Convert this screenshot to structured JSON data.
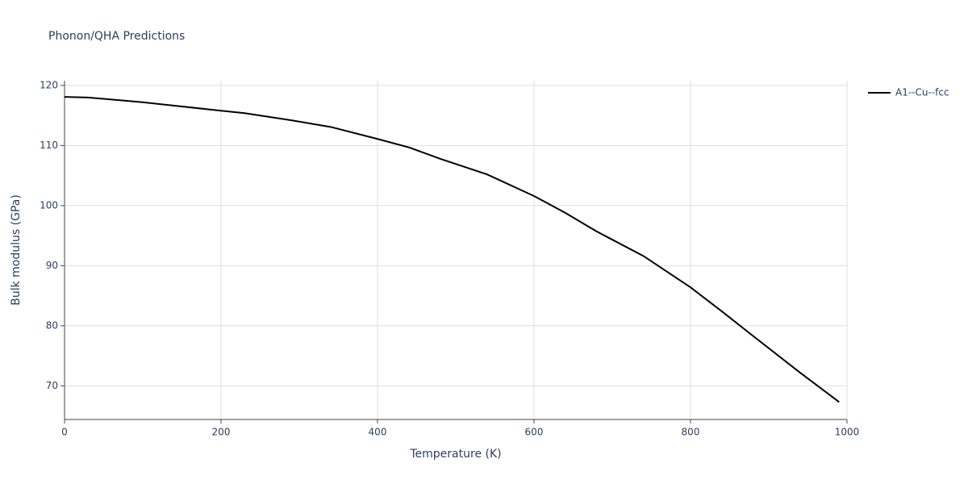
{
  "chart_data": {
    "type": "line",
    "title": "Phonon/QHA Predictions",
    "x_label": "Temperature (K)",
    "y_label": "Bulk modulus (GPa)",
    "x": [
      0,
      30,
      100,
      200,
      230,
      290,
      340,
      400,
      440,
      480,
      540,
      600,
      640,
      680,
      740,
      800,
      840,
      880,
      940,
      990
    ],
    "series": [
      {
        "name": "A1--Cu--fcc",
        "color": "#000000",
        "values": [
          118.1,
          118.0,
          117.2,
          115.8,
          115.4,
          114.2,
          113.1,
          111.1,
          109.7,
          107.8,
          105.2,
          101.6,
          98.8,
          95.7,
          91.6,
          86.4,
          82.4,
          78.3,
          72.2,
          67.3
        ]
      }
    ],
    "xlim": [
      0,
      1000
    ],
    "xticks": [
      0,
      200,
      400,
      600,
      800,
      1000
    ],
    "ylim": [
      64.4,
      120.8
    ],
    "yticks": [
      70,
      80,
      90,
      100,
      110,
      120
    ],
    "grid": true,
    "legend": "right"
  }
}
